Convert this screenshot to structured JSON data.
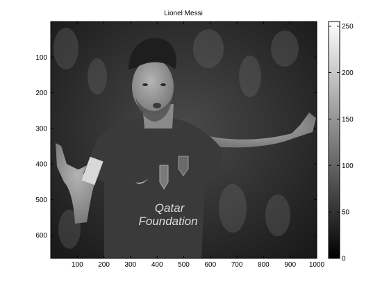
{
  "chart_data": {
    "type": "heatmap",
    "title": "Lionel Messi",
    "xlabel": "",
    "ylabel": "",
    "xlim": [
      0,
      1000
    ],
    "ylim": [
      665,
      0
    ],
    "x_ticks": [
      100,
      200,
      300,
      400,
      500,
      600,
      700,
      800,
      900,
      1000
    ],
    "y_ticks": [
      100,
      200,
      300,
      400,
      500,
      600
    ],
    "grid": false,
    "colormap": "gray",
    "colorbar": {
      "range": [
        0,
        255
      ],
      "ticks": [
        0,
        50,
        100,
        150,
        200,
        250
      ],
      "placement": "right"
    },
    "image": {
      "content": "grayscale photograph of Lionel Messi celebrating with arms raised, wearing a dark jersey",
      "jersey_text": [
        "Qatar",
        "Foundation"
      ]
    }
  },
  "colors": {
    "axis": "#000000",
    "background": "#ffffff",
    "jersey": "#3a3a3a",
    "skin": "#9a9a9a",
    "hair": "#1e1e1e"
  }
}
